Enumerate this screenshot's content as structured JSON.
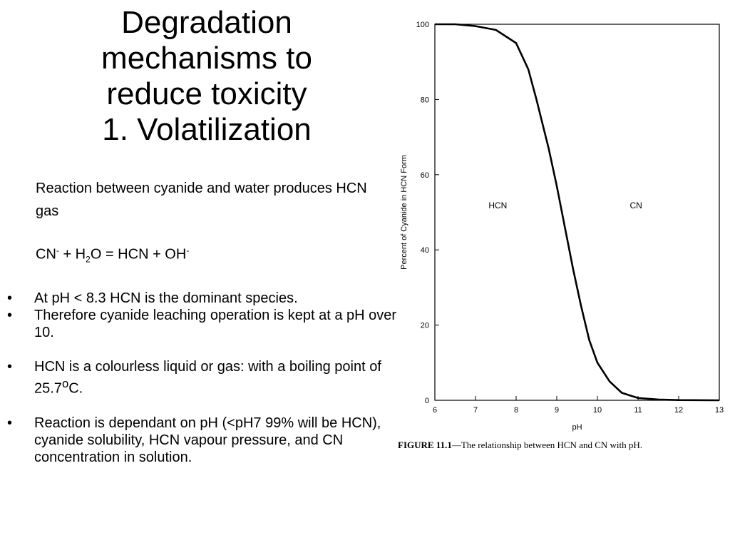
{
  "title": {
    "lines": [
      "Degradation",
      "mechanisms to",
      "reduce toxicity",
      "1. Volatilization"
    ]
  },
  "intro": "Reaction between cyanide and water produces HCN gas",
  "equation": {
    "a": "CN",
    "a_sup": "-",
    "plus1": " + H",
    "h_sub": "2",
    "b": "O = HCN + OH",
    "b_sup": "-"
  },
  "bullets": [
    "At pH < 8.3 HCN is the dominant species.",
    "Therefore cyanide leaching operation is kept at a pH over 10.",
    "HCN is a colourless liquid or gas: with a boiling point of 25.7",
    "Reaction is dependant on pH (<pH7 99% will be HCN), cyanide solubility, HCN vapour pressure, and CN concentration in solution."
  ],
  "bullet3_sup": "o",
  "bullet3_tail": "C.",
  "caption": {
    "fig": "FIGURE 11.1",
    "text": "—The relationship between HCN and CN with pH."
  },
  "chart_data": {
    "type": "line",
    "ylabel": "Percent of Cyanide in HCN Form",
    "xlabel": "pH",
    "xlim": [
      6,
      13
    ],
    "ylim": [
      0,
      100
    ],
    "xticks": [
      6,
      7,
      8,
      9,
      10,
      11,
      12,
      13
    ],
    "yticks": [
      0,
      20,
      40,
      60,
      80,
      100
    ],
    "region_labels": [
      "HCN",
      "CN"
    ],
    "x": [
      6.0,
      6.5,
      7.0,
      7.5,
      8.0,
      8.3,
      8.5,
      8.8,
      9.0,
      9.2,
      9.4,
      9.6,
      9.8,
      10.0,
      10.3,
      10.6,
      11.0,
      11.5,
      12.0,
      13.0
    ],
    "y": [
      100,
      100,
      99.5,
      98.5,
      95,
      88,
      80,
      67,
      57,
      46,
      35,
      25,
      16,
      10,
      5,
      2,
      0.6,
      0.2,
      0.05,
      0
    ]
  }
}
